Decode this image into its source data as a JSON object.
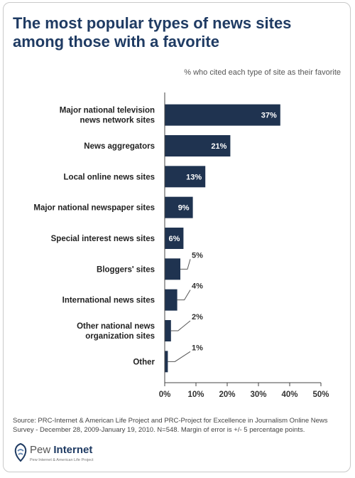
{
  "chart_data": {
    "type": "bar",
    "orientation": "horizontal",
    "title": "The most popular types of news sites among those with a favorite",
    "subtitle": "% who cited each type of site as their favorite",
    "categories": [
      [
        "Major national television",
        "news network sites"
      ],
      [
        "News aggregators"
      ],
      [
        "Local online news sites"
      ],
      [
        "Major national newspaper sites"
      ],
      [
        "Special interest news sites"
      ],
      [
        "Bloggers' sites"
      ],
      [
        "International news sites"
      ],
      [
        "Other national news",
        "organization sites"
      ],
      [
        "Other"
      ]
    ],
    "values": [
      37,
      21,
      13,
      9,
      6,
      5,
      4,
      2,
      1
    ],
    "value_labels": [
      "37%",
      "21%",
      "13%",
      "9%",
      "6%",
      "5%",
      "4%",
      "2%",
      "1%"
    ],
    "label_inside": [
      true,
      true,
      true,
      true,
      true,
      false,
      false,
      false,
      false
    ],
    "xlim": [
      0,
      50
    ],
    "xticks": [
      0,
      10,
      20,
      30,
      40,
      50
    ],
    "xtick_labels": [
      "0%",
      "10%",
      "20%",
      "30%",
      "40%",
      "50%"
    ],
    "grid": false,
    "colors": {
      "bar": "#1f3350",
      "axis": "#444444"
    }
  },
  "source": "Source: PRC-Internet & American Life Project and PRC-Project for Excellence in Journalism Online News Survey - December 28, 2009-January 19, 2010. N=548. Margin of error is +/- 5 percentage points.",
  "logo": {
    "name_part1": "Pew ",
    "name_part2": "Internet",
    "tagline": "Pew Internet & American Life Project"
  }
}
